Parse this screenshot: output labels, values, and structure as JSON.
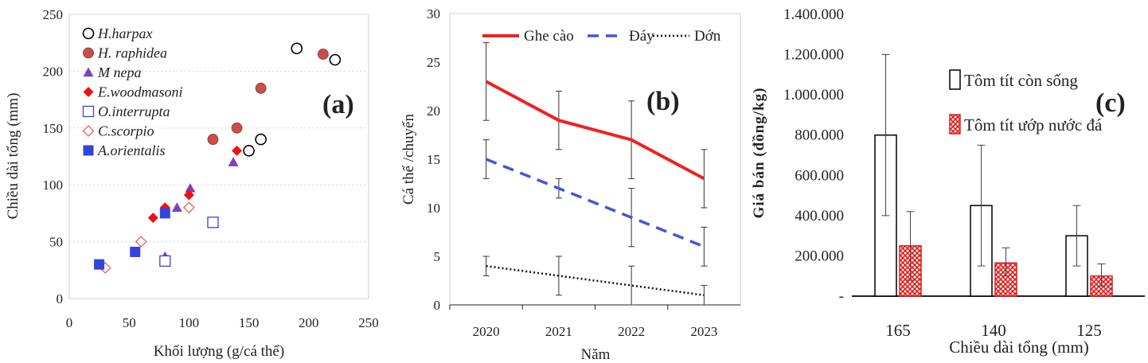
{
  "chart_data": [
    {
      "type": "scatter",
      "panel_label": "(a)",
      "xlabel": "Khối lượng (g/cá thể)",
      "ylabel": "Chiều dài tổng (mm)",
      "xlim": [
        0,
        250
      ],
      "ylim": [
        0,
        250
      ],
      "xticks": [
        "0",
        "50",
        "100",
        "150",
        "200",
        "250"
      ],
      "yticks": [
        "0",
        "50",
        "100",
        "150",
        "200",
        "250"
      ],
      "grid": "horizontal-dotted",
      "legend": "top-left",
      "series": [
        {
          "name": "H.harpax",
          "marker": "circle-open",
          "color": "#000000",
          "points": [
            [
              150,
              130
            ],
            [
              160,
              140
            ],
            [
              190,
              220
            ],
            [
              222,
              210
            ]
          ]
        },
        {
          "name": "H. raphidea",
          "marker": "circle-filled",
          "color": "#c8504a",
          "points": [
            [
              120,
              140
            ],
            [
              140,
              150
            ],
            [
              160,
              185
            ],
            [
              212,
              215
            ]
          ]
        },
        {
          "name": "M nepa",
          "marker": "triangle",
          "color": "#8040b8",
          "points": [
            [
              80,
              37
            ],
            [
              90,
              80
            ],
            [
              101,
              97
            ],
            [
              137,
              120
            ]
          ]
        },
        {
          "name": "E.woodmasoni",
          "marker": "diamond-filled",
          "color": "#ee1111",
          "points": [
            [
              70,
              71
            ],
            [
              80,
              80
            ],
            [
              100,
              91
            ],
            [
              140,
              130
            ]
          ]
        },
        {
          "name": "O.interrupta",
          "marker": "square-open",
          "color": "#4040c8",
          "points": [
            [
              80,
              33
            ],
            [
              120,
              67
            ]
          ]
        },
        {
          "name": "C.scorpio",
          "marker": "diamond-open",
          "color": "#e86060",
          "points": [
            [
              30,
              27
            ],
            [
              60,
              50
            ],
            [
              100,
              80
            ]
          ]
        },
        {
          "name": "A.orientalis",
          "marker": "square-filled",
          "color": "#3344dd",
          "points": [
            [
              25,
              30
            ],
            [
              55,
              41
            ],
            [
              80,
              75
            ]
          ]
        }
      ]
    },
    {
      "type": "line",
      "panel_label": "(b)",
      "xlabel": "Năm",
      "ylabel": "Cá thể /chuyến",
      "categories": [
        "2020",
        "2021",
        "2022",
        "2023"
      ],
      "ylim": [
        0,
        30
      ],
      "yticks": [
        "0",
        "5",
        "10",
        "15",
        "20",
        "25",
        "30"
      ],
      "legend": "top",
      "series": [
        {
          "name": "Ghe cào",
          "style": "solid",
          "color": "#ee2222",
          "values": [
            23,
            19,
            17,
            13
          ],
          "err_low": [
            19,
            16,
            13,
            10
          ],
          "err_high": [
            27,
            22,
            21,
            16
          ]
        },
        {
          "name": "Đáy",
          "style": "dashed",
          "color": "#4455dd",
          "values": [
            15,
            12,
            9,
            6
          ],
          "err_low": [
            13,
            11,
            6,
            4
          ],
          "err_high": [
            17,
            13,
            12,
            8
          ]
        },
        {
          "name": "Dớn",
          "style": "dotted",
          "color": "#111111",
          "values": [
            4,
            3,
            2,
            1
          ],
          "err_low": [
            3,
            1,
            0,
            0
          ],
          "err_high": [
            5,
            5,
            4,
            2
          ]
        }
      ]
    },
    {
      "type": "bar",
      "panel_label": "(c)",
      "xlabel": "Chiều dài tổng (mm)",
      "ylabel": "Giá bán (đồng/kg)",
      "categories": [
        "165",
        "140",
        "125"
      ],
      "ylim": [
        0,
        1400000
      ],
      "yticks": [
        "-",
        "200.000",
        "400.000",
        "600.000",
        "800.000",
        "1.000.000",
        "1.200.000",
        "1.400.000"
      ],
      "legend": "top-center",
      "series": [
        {
          "name": "Tôm tít còn sống",
          "fill": "open",
          "color": "#000000",
          "values": [
            800000,
            450000,
            300000
          ],
          "err_low": [
            400000,
            150000,
            150000
          ],
          "err_high": [
            1200000,
            750000,
            450000
          ]
        },
        {
          "name": "Tôm tít ướp nước đá",
          "fill": "pattern",
          "color": "#e01e1e",
          "values": [
            250000,
            165000,
            100000
          ],
          "err_low": [
            80000,
            100000,
            50000
          ],
          "err_high": [
            420000,
            240000,
            160000
          ]
        }
      ]
    }
  ]
}
